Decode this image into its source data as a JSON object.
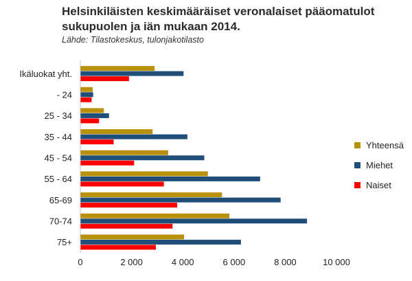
{
  "title": "Helsinkiläisten keskimääräiset veronalaiset pääomatulot sukupuolen ja iän mukaan 2014.",
  "source": "Lähde: Tilastokeskus, tulonjakotilasto",
  "colors": {
    "yhteensa": "#B8900A",
    "miehet": "#1F4E79",
    "naiset": "#FF0000"
  },
  "chart_data": {
    "type": "bar",
    "orientation": "horizontal",
    "categories": [
      "Ikäluokat yht.",
      "- 24",
      "25 - 34",
      "35 - 44",
      "45 - 54",
      "55 - 64",
      "65-69",
      "70-74",
      "75+"
    ],
    "series": [
      {
        "name": "Yhteensä",
        "color": "#B8900A",
        "values": [
          2900,
          480,
          920,
          2820,
          3430,
          4980,
          5530,
          5820,
          4050
        ]
      },
      {
        "name": "Miehet",
        "color": "#1F4E79",
        "values": [
          4030,
          500,
          1120,
          4180,
          4840,
          7020,
          7820,
          8850,
          6270
        ]
      },
      {
        "name": "Naiset",
        "color": "#FF0000",
        "values": [
          1900,
          440,
          730,
          1300,
          2100,
          3260,
          3780,
          3600,
          2950
        ]
      }
    ],
    "xlim": [
      0,
      10000
    ],
    "xticks": [
      0,
      2000,
      4000,
      6000,
      8000,
      10000
    ],
    "xtick_labels": [
      "0",
      "2 000",
      "4 000",
      "6 000",
      "8 000",
      "10 000"
    ],
    "legend": [
      "Yhteensä",
      "Miehet",
      "Naiset"
    ],
    "legend_position": "right",
    "grid": false
  }
}
